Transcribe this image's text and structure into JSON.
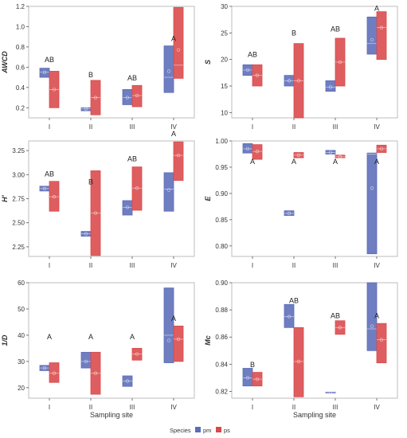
{
  "figure": {
    "xlabel": "Sampling site",
    "legend_title": "Species",
    "legend": [
      {
        "key": "pm",
        "label": "pm",
        "color": "#5b6cb8"
      },
      {
        "key": "ps",
        "label": "ps",
        "color": "#d9484a"
      }
    ]
  },
  "chart_data": [
    {
      "type": "box",
      "ylabel": "AWCD",
      "categories": [
        "I",
        "II",
        "III",
        "IV"
      ],
      "ylim": [
        0.1,
        1.2
      ],
      "yticks": [
        "0.2",
        "0.4",
        "0.6",
        "0.8",
        "1.0",
        "1.2"
      ],
      "letters": [
        "AB",
        "B",
        "AB",
        "A"
      ],
      "letter_y": [
        0.65,
        0.5,
        0.47,
        0.86
      ],
      "series": [
        {
          "name": "pm",
          "boxes": [
            {
              "low": 0.5,
              "high": 0.59,
              "median": 0.55,
              "mean": 0.55
            },
            {
              "low": 0.17,
              "high": 0.2,
              "median": 0.19,
              "mean": 0.19
            },
            {
              "low": 0.23,
              "high": 0.38,
              "median": 0.3,
              "mean": 0.3
            },
            {
              "low": 0.35,
              "high": 0.81,
              "median": 0.5,
              "mean": 0.56
            }
          ]
        },
        {
          "name": "ps",
          "boxes": [
            {
              "low": 0.2,
              "high": 0.56,
              "median": 0.38,
              "mean": 0.38
            },
            {
              "low": 0.13,
              "high": 0.47,
              "median": 0.3,
              "mean": 0.3
            },
            {
              "low": 0.21,
              "high": 0.42,
              "median": 0.32,
              "mean": 0.32
            },
            {
              "low": 0.49,
              "high": 1.19,
              "median": 0.62,
              "mean": 0.77
            }
          ]
        }
      ]
    },
    {
      "type": "box",
      "ylabel": "S",
      "categories": [
        "I",
        "II",
        "III",
        "IV"
      ],
      "ylim": [
        9,
        30
      ],
      "yticks": [
        "10",
        "15",
        "20",
        "25",
        "30"
      ],
      "letters": [
        "AB",
        "B",
        "AB",
        "A"
      ],
      "letter_y": [
        20.5,
        24.5,
        25.3,
        29.2
      ],
      "series": [
        {
          "name": "pm",
          "boxes": [
            {
              "low": 17,
              "high": 19,
              "median": 18,
              "mean": 18
            },
            {
              "low": 15,
              "high": 17,
              "median": 16,
              "mean": 16
            },
            {
              "low": 14,
              "high": 16,
              "median": 14.8,
              "mean": 14.8
            },
            {
              "low": 21,
              "high": 28,
              "median": 23,
              "mean": 23.7
            }
          ]
        },
        {
          "name": "ps",
          "boxes": [
            {
              "low": 15,
              "high": 19,
              "median": 17,
              "mean": 17
            },
            {
              "low": 9,
              "high": 23,
              "median": 16,
              "mean": 16
            },
            {
              "low": 15,
              "high": 24,
              "median": 19.5,
              "mean": 19.5
            },
            {
              "low": 20,
              "high": 29,
              "median": 26,
              "mean": 26
            }
          ]
        }
      ]
    },
    {
      "type": "box",
      "ylabel": "H'",
      "categories": [
        "I",
        "II",
        "III",
        "IV"
      ],
      "ylim": [
        2.15,
        3.35
      ],
      "yticks": [
        "2.25",
        "2.50",
        "2.75",
        "3.00",
        "3.25"
      ],
      "letters": [
        "AB",
        "B",
        "AB",
        "A"
      ],
      "letter_y": [
        2.98,
        2.9,
        3.14,
        3.4
      ],
      "series": [
        {
          "name": "pm",
          "boxes": [
            {
              "low": 2.83,
              "high": 2.88,
              "median": 2.855,
              "mean": 2.855
            },
            {
              "low": 2.36,
              "high": 2.41,
              "median": 2.385,
              "mean": 2.385
            },
            {
              "low": 2.58,
              "high": 2.73,
              "median": 2.66,
              "mean": 2.66
            },
            {
              "low": 2.62,
              "high": 3.02,
              "median": 2.85,
              "mean": 2.84
            }
          ]
        },
        {
          "name": "ps",
          "boxes": [
            {
              "low": 2.62,
              "high": 2.93,
              "median": 2.77,
              "mean": 2.77
            },
            {
              "low": 2.16,
              "high": 3.04,
              "median": 2.6,
              "mean": 2.6
            },
            {
              "low": 2.63,
              "high": 3.08,
              "median": 2.86,
              "mean": 2.86
            },
            {
              "low": 2.94,
              "high": 3.34,
              "median": 3.2,
              "mean": 3.2
            }
          ]
        }
      ]
    },
    {
      "type": "box",
      "ylabel": "E",
      "categories": [
        "I",
        "II",
        "III",
        "IV"
      ],
      "ylim": [
        0.78,
        1.0
      ],
      "yticks": [
        "0.80",
        "0.85",
        "0.90",
        "0.95",
        "1.00"
      ],
      "letters": [
        "A",
        "A",
        "A",
        "A"
      ],
      "letter_y": [
        0.956,
        0.956,
        0.956,
        0.956
      ],
      "series": [
        {
          "name": "pm",
          "boxes": [
            {
              "low": 0.977,
              "high": 0.995,
              "median": 0.985,
              "mean": 0.985
            },
            {
              "low": 0.858,
              "high": 0.867,
              "median": 0.862,
              "mean": 0.862
            },
            {
              "low": 0.975,
              "high": 0.982,
              "median": 0.978,
              "mean": 0.978
            },
            {
              "low": 0.785,
              "high": 0.977,
              "median": 0.975,
              "mean": 0.91
            }
          ]
        },
        {
          "name": "ps",
          "boxes": [
            {
              "low": 0.965,
              "high": 0.993,
              "median": 0.98,
              "mean": 0.98
            },
            {
              "low": 0.968,
              "high": 0.978,
              "median": 0.973,
              "mean": 0.973
            },
            {
              "low": 0.968,
              "high": 0.973,
              "median": 0.97,
              "mean": 0.97
            },
            {
              "low": 0.978,
              "high": 0.992,
              "median": 0.985,
              "mean": 0.985
            }
          ]
        }
      ]
    },
    {
      "type": "box",
      "ylabel": "1/D",
      "categories": [
        "I",
        "II",
        "III",
        "IV"
      ],
      "ylim": [
        16,
        60
      ],
      "yticks": [
        "20",
        "30",
        "40",
        "50",
        "60"
      ],
      "letters": [
        "A",
        "A",
        "A",
        "A"
      ],
      "letter_y": [
        38.5,
        38.5,
        38.5,
        45.5
      ],
      "series": [
        {
          "name": "pm",
          "boxes": [
            {
              "low": 26.5,
              "high": 28.5,
              "median": 27.5,
              "mean": 27.5
            },
            {
              "low": 27.5,
              "high": 33.5,
              "median": 30,
              "mean": 30
            },
            {
              "low": 20.5,
              "high": 24.5,
              "median": 22.5,
              "mean": 22.5
            },
            {
              "low": 29.5,
              "high": 58,
              "median": 40,
              "mean": 38
            }
          ]
        },
        {
          "name": "ps",
          "boxes": [
            {
              "low": 22,
              "high": 29.5,
              "median": 25.5,
              "mean": 25.5
            },
            {
              "low": 17.5,
              "high": 33.5,
              "median": 25.5,
              "mean": 25.5
            },
            {
              "low": 30.5,
              "high": 35,
              "median": 32.8,
              "mean": 32.8
            },
            {
              "low": 30,
              "high": 43.5,
              "median": 38.5,
              "mean": 38.5
            }
          ]
        }
      ]
    },
    {
      "type": "box",
      "ylabel": "Mc",
      "categories": [
        "I",
        "II",
        "III",
        "IV"
      ],
      "ylim": [
        0.815,
        0.9
      ],
      "yticks": [
        "0.82",
        "0.84",
        "0.86",
        "0.88",
        "0.90"
      ],
      "letters": [
        "B",
        "AB",
        "AB",
        "A"
      ],
      "letter_y": [
        0.838,
        0.885,
        0.874,
        0.874
      ],
      "series": [
        {
          "name": "pm",
          "boxes": [
            {
              "low": 0.824,
              "high": 0.837,
              "median": 0.83,
              "mean": 0.83
            },
            {
              "low": 0.867,
              "high": 0.884,
              "median": 0.875,
              "mean": 0.875
            },
            {
              "low": 0.819,
              "high": 0.8195,
              "median": 0.8192,
              "mean": 0.8192
            },
            {
              "low": 0.85,
              "high": 0.9,
              "median": 0.866,
              "mean": 0.868
            }
          ]
        },
        {
          "name": "ps",
          "boxes": [
            {
              "low": 0.824,
              "high": 0.834,
              "median": 0.829,
              "mean": 0.829
            },
            {
              "low": 0.816,
              "high": 0.867,
              "median": 0.842,
              "mean": 0.842
            },
            {
              "low": 0.862,
              "high": 0.872,
              "median": 0.867,
              "mean": 0.867
            },
            {
              "low": 0.841,
              "high": 0.87,
              "median": 0.858,
              "mean": 0.858
            }
          ]
        }
      ]
    }
  ]
}
